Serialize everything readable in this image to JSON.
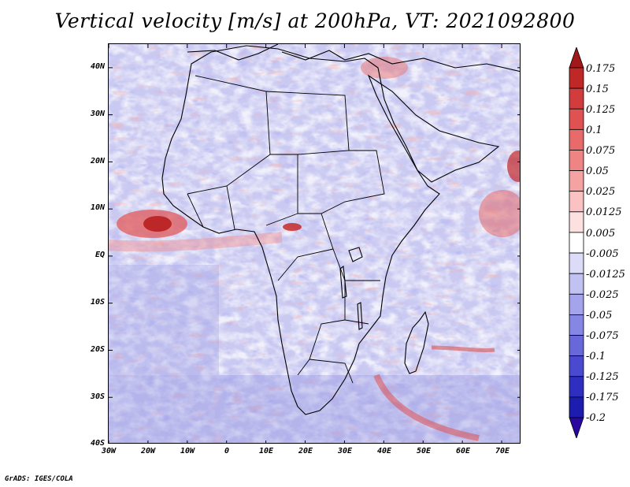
{
  "title": "Vertical velocity [m/s] at 200hPa, VT: 2021092800",
  "credit": "GrADS: IGES/COLA",
  "map": {
    "lat_labels": [
      "40N",
      "30N",
      "20N",
      "10N",
      "EQ",
      "10S",
      "20S",
      "30S",
      "40S"
    ],
    "lon_labels": [
      "30W",
      "20W",
      "10W",
      "0",
      "10E",
      "20E",
      "30E",
      "40E",
      "50E",
      "60E",
      "70E"
    ],
    "lat_range": [
      -40,
      45
    ],
    "lon_range": [
      -30,
      75
    ],
    "lat_ticks": [
      40,
      30,
      20,
      10,
      0,
      -10,
      -20,
      -30,
      -40
    ],
    "lon_ticks": [
      -30,
      -20,
      -10,
      0,
      10,
      20,
      30,
      40,
      50,
      60,
      70
    ]
  },
  "colorbar": {
    "labels": [
      "0.175",
      "0.15",
      "0.125",
      "0.1",
      "0.075",
      "0.05",
      "0.025",
      "0.0125",
      "0.005",
      "-0.005",
      "-0.0125",
      "-0.025",
      "-0.05",
      "-0.075",
      "-0.1",
      "-0.125",
      "-0.175",
      "-0.2"
    ],
    "colors": [
      "#a01818",
      "#c02828",
      "#d23c3c",
      "#e05252",
      "#e86a6a",
      "#ef8484",
      "#f5a2a2",
      "#fac2c2",
      "#fde0e0",
      "#ffffff",
      "#dcdcf8",
      "#c2c2f2",
      "#a4a4ec",
      "#8686e4",
      "#6868da",
      "#4a4ad0",
      "#2e2ec0",
      "#1c1cae",
      "#2a08a0"
    ]
  }
}
